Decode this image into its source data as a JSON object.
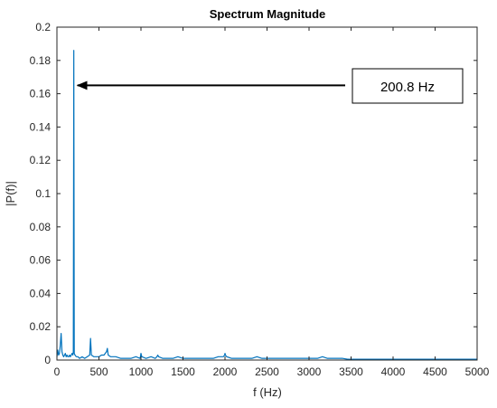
{
  "chart_data": {
    "type": "line",
    "title": "Spectrum Magnitude",
    "xlabel": "f (Hz)",
    "ylabel": "|P(f)|",
    "xlim": [
      0,
      5000
    ],
    "ylim": [
      0,
      0.2
    ],
    "x_ticks": [
      0,
      500,
      1000,
      1500,
      2000,
      2500,
      3000,
      3500,
      4000,
      4500,
      5000
    ],
    "y_ticks": [
      0,
      0.02,
      0.04,
      0.06,
      0.08,
      0.1,
      0.12,
      0.14,
      0.16,
      0.18,
      0.2
    ],
    "x_tick_labels": [
      "0",
      "500",
      "1000",
      "1500",
      "2000",
      "2500",
      "3000",
      "3500",
      "4000",
      "4500",
      "5000"
    ],
    "y_tick_labels": [
      "0",
      "0.02",
      "0.04",
      "0.06",
      "0.08",
      "0.1",
      "0.12",
      "0.14",
      "0.16",
      "0.18",
      "0.2"
    ],
    "grid": false,
    "box": true,
    "line_color": "#0072bd",
    "series": [
      {
        "x": [
          0,
          10,
          20,
          30,
          40,
          50,
          60,
          70,
          80,
          90,
          100,
          110,
          120,
          130,
          140,
          150,
          160,
          170,
          180,
          190,
          195,
          200.8,
          206,
          215,
          230,
          250,
          270,
          300,
          330,
          360,
          390,
          400,
          410,
          440,
          470,
          500,
          530,
          560,
          575,
          590,
          600,
          610,
          640,
          700,
          760,
          820,
          880,
          940,
          990,
          1000,
          1010,
          1060,
          1120,
          1170,
          1190,
          1200,
          1210,
          1260,
          1320,
          1380,
          1440,
          1500,
          1560,
          1620,
          1680,
          1740,
          1800,
          1860,
          1920,
          1980,
          1995,
          2000,
          2005,
          2020,
          2080,
          2140,
          2200,
          2260,
          2320,
          2380,
          2440,
          2500,
          2560,
          2620,
          2680,
          2740,
          2800,
          2860,
          2920,
          2980,
          3040,
          3100,
          3160,
          3220,
          3280,
          3340,
          3400,
          3460,
          3520,
          3580,
          3640,
          3700,
          3800,
          3900,
          4000,
          4100,
          4200,
          4300,
          4400,
          4500,
          4600,
          4700,
          4800,
          4900,
          5000
        ],
        "values": [
          0.002,
          0.006,
          0.003,
          0.004,
          0.009,
          0.016,
          0.005,
          0.003,
          0.002,
          0.003,
          0.004,
          0.002,
          0.003,
          0.002,
          0.002,
          0.003,
          0.002,
          0.003,
          0.004,
          0.003,
          0.005,
          0.186,
          0.004,
          0.003,
          0.002,
          0.002,
          0.001,
          0.002,
          0.001,
          0.002,
          0.003,
          0.013,
          0.003,
          0.002,
          0.002,
          0.002,
          0.003,
          0.003,
          0.004,
          0.005,
          0.007,
          0.003,
          0.002,
          0.002,
          0.001,
          0.001,
          0.001,
          0.002,
          0.001,
          0.004,
          0.002,
          0.001,
          0.002,
          0.001,
          0.002,
          0.003,
          0.002,
          0.001,
          0.001,
          0.001,
          0.002,
          0.001,
          0.001,
          0.001,
          0.001,
          0.001,
          0.001,
          0.001,
          0.002,
          0.002,
          0.003,
          0.004,
          0.003,
          0.002,
          0.001,
          0.001,
          0.001,
          0.001,
          0.001,
          0.002,
          0.001,
          0.001,
          0.001,
          0.001,
          0.001,
          0.001,
          0.001,
          0.001,
          0.001,
          0.001,
          0.001,
          0.001,
          0.002,
          0.001,
          0.001,
          0.001,
          0.001,
          0.0005,
          0.0005,
          0.0005,
          0.0005,
          0.0005,
          0.0005,
          0.0005,
          0.0005,
          0.0005,
          0.0005,
          0.0005,
          0.0005,
          0.0005,
          0.0005,
          0.0005,
          0.0005,
          0.0005,
          0.0005
        ]
      }
    ],
    "annotation": {
      "text": "200.8 Hz",
      "arrow_target": {
        "x": 200.8,
        "y": 0.165
      },
      "arrow_tail_y": 0.165
    }
  }
}
